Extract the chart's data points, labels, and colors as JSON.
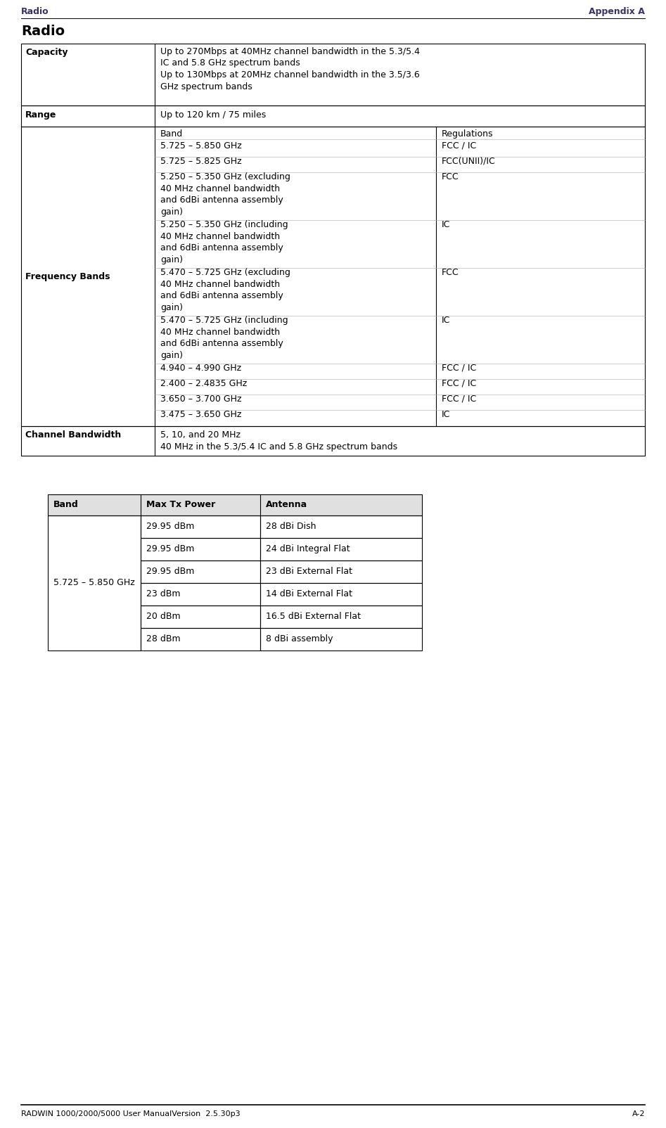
{
  "header_left": "Radio",
  "header_right": "Appendix A",
  "footer_left": "RADWIN 1000/2000/5000 User ManualVersion  2.5.30p3",
  "footer_right": "A-2",
  "section_title": "Radio",
  "header_color": "#3d3068",
  "band_items": [
    {
      "band": "5.725 – 5.850 GHz",
      "reg": "FCC / IC",
      "lines": 1
    },
    {
      "band": "5.725 – 5.825 GHz",
      "reg": "FCC(UNII)/IC",
      "lines": 1
    },
    {
      "band": "5.250 – 5.350 GHz (excluding\n40 MHz channel bandwidth\nand 6dBi antenna assembly\ngain)",
      "reg": "FCC",
      "lines": 4
    },
    {
      "band": "5.250 – 5.350 GHz (including\n40 MHz channel bandwidth\nand 6dBi antenna assembly\ngain)",
      "reg": "IC",
      "lines": 4
    },
    {
      "band": "5.470 – 5.725 GHz (excluding\n40 MHz channel bandwidth\nand 6dBi antenna assembly\ngain)",
      "reg": "FCC",
      "lines": 4
    },
    {
      "band": "5.470 – 5.725 GHz (including\n40 MHz channel bandwidth\nand 6dBi antenna assembly\ngain)",
      "reg": "IC",
      "lines": 4
    },
    {
      "band": "4.940 – 4.990 GHz",
      "reg": "FCC / IC",
      "lines": 1
    },
    {
      "band": "2.400 – 2.4835 GHz",
      "reg": "FCC / IC",
      "lines": 1
    },
    {
      "band": "3.650 – 3.700 GHz",
      "reg": "FCC / IC",
      "lines": 1
    },
    {
      "band": "3.475 – 3.650 GHz",
      "reg": "IC",
      "lines": 1
    }
  ],
  "table2_rows": [
    {
      "power": "29.95 dBm",
      "antenna": "28 dBi Dish"
    },
    {
      "power": "29.95 dBm",
      "antenna": "24 dBi Integral Flat"
    },
    {
      "power": "29.95 dBm",
      "antenna": "23 dBi External Flat"
    },
    {
      "power": "23 dBm",
      "antenna": "14 dBi External Flat"
    },
    {
      "power": "20 dBm",
      "antenna": "16.5 dBi External Flat"
    },
    {
      "power": "28 dBm",
      "antenna": "8 dBi assembly"
    }
  ],
  "bg_color": "#ffffff"
}
